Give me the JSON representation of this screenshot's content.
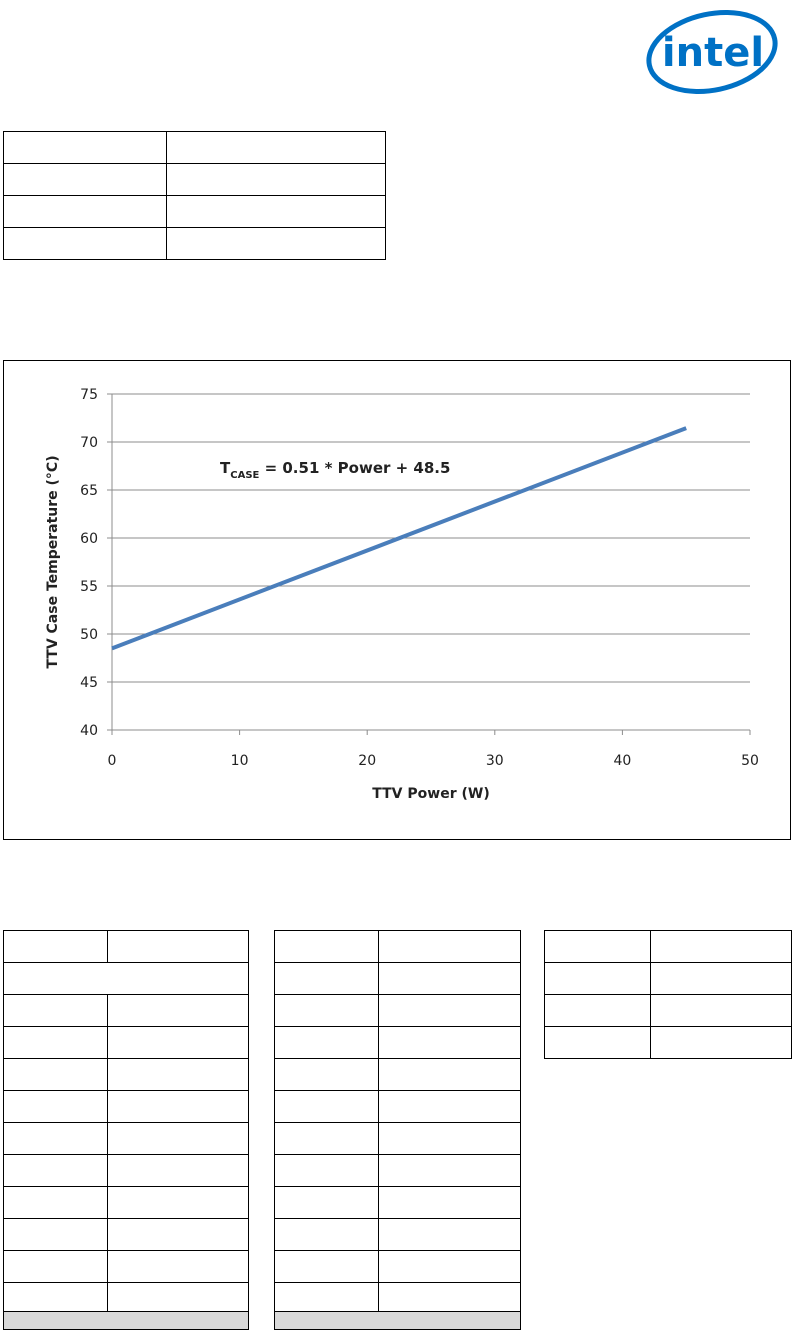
{
  "logo": "intel",
  "chart_data": {
    "type": "line",
    "x": [
      0,
      45
    ],
    "values": [
      48.5,
      71.45
    ],
    "color": "#4a7ebb",
    "annotation": {
      "main": "T",
      "subscript": "CASE",
      "rest": " = 0.51 * Power + 48.5"
    },
    "x_label": "TTV Power (W)",
    "y_label": "TTV Case Temperature (°C)",
    "xlim": [
      0,
      50
    ],
    "xticks": [
      0,
      10,
      20,
      30,
      40,
      50
    ],
    "ylim": [
      40,
      75
    ],
    "yticks": [
      40,
      45,
      50,
      55,
      60,
      65,
      70,
      75
    ],
    "grid": true
  }
}
